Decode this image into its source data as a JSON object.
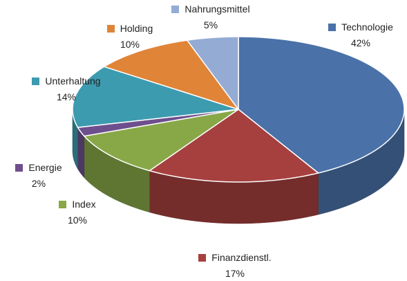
{
  "chart_data": {
    "type": "pie",
    "categories": [
      "Technologie",
      "Finanzdienstl.",
      "Index",
      "Energie",
      "Unterhaltung",
      "Holding",
      "Nahrungsmittel"
    ],
    "values": [
      42,
      17,
      10,
      2,
      14,
      10,
      5
    ],
    "value_labels": [
      "42%",
      "17%",
      "10%",
      "2%",
      "14%",
      "10%",
      "5%"
    ],
    "colors": [
      "#4a72a8",
      "#a6403e",
      "#88a848",
      "#6e4f8d",
      "#3d9bb0",
      "#e08438",
      "#94abd4"
    ]
  }
}
